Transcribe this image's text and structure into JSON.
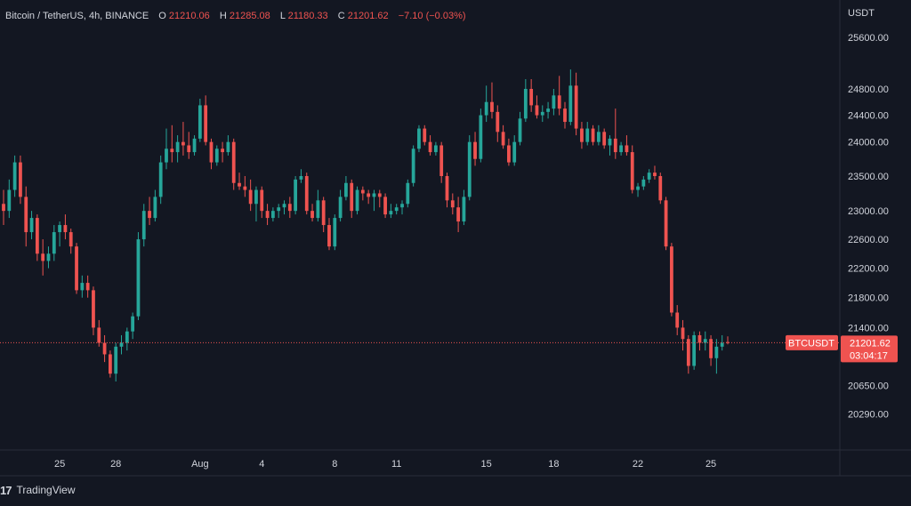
{
  "legend": {
    "symbol": "Bitcoin / TetherUS, 4h, BINANCE",
    "o_label": "O",
    "o_value": "21210.06",
    "h_label": "H",
    "h_value": "21285.08",
    "l_label": "L",
    "l_value": "21180.33",
    "c_label": "C",
    "c_value": "21201.62",
    "change": "−7.10 (−0.03%)"
  },
  "price_axis": {
    "currency": "USDT",
    "ticks": [
      "25600.00",
      "24800.00",
      "24400.00",
      "24000.00",
      "23500.00",
      "23000.00",
      "22600.00",
      "22200.00",
      "21800.00",
      "21400.00",
      "20650.00",
      "20290.00"
    ]
  },
  "price_marker": {
    "symbol_tag": "BTCUSDT",
    "price": "21201.62",
    "countdown": "03:04:17"
  },
  "time_axis": {
    "ticks": [
      "25",
      "28",
      "Aug",
      "4",
      "8",
      "11",
      "15",
      "18",
      "22",
      "25"
    ]
  },
  "branding": {
    "logo": "17",
    "name": "TradingView"
  },
  "colors": {
    "background": "#131722",
    "up": "#26a69a",
    "down": "#ef5350",
    "text": "#d1d4dc"
  },
  "chart_data": {
    "type": "candlestick",
    "title": "Bitcoin / TetherUS, 4h, BINANCE",
    "xlabel": "",
    "ylabel": "USDT",
    "y_scale": "log",
    "ylim": [
      20150,
      25800
    ],
    "last_price": 21201.62,
    "candles_ohlc": [
      [
        23100,
        23300,
        22800,
        23000
      ],
      [
        23000,
        23450,
        22900,
        23300
      ],
      [
        23300,
        23800,
        23200,
        23700
      ],
      [
        23700,
        23800,
        23100,
        23200
      ],
      [
        23200,
        23350,
        22500,
        22700
      ],
      [
        22700,
        23000,
        22600,
        22900
      ],
      [
        22900,
        22950,
        22300,
        22400
      ],
      [
        22400,
        22600,
        22100,
        22300
      ],
      [
        22300,
        22500,
        22200,
        22400
      ],
      [
        22400,
        22800,
        22300,
        22700
      ],
      [
        22700,
        22850,
        22500,
        22800
      ],
      [
        22800,
        22950,
        22600,
        22700
      ],
      [
        22700,
        22750,
        22400,
        22500
      ],
      [
        22500,
        22550,
        21850,
        21900
      ],
      [
        21900,
        22100,
        21800,
        22000
      ],
      [
        22000,
        22100,
        21800,
        21900
      ],
      [
        21900,
        21950,
        21300,
        21400
      ],
      [
        21400,
        21500,
        21150,
        21200
      ],
      [
        21200,
        21300,
        20950,
        21050
      ],
      [
        21050,
        21100,
        20750,
        20800
      ],
      [
        20800,
        21200,
        20700,
        21150
      ],
      [
        21150,
        21300,
        21050,
        21200
      ],
      [
        21200,
        21400,
        21100,
        21350
      ],
      [
        21350,
        21600,
        21250,
        21550
      ],
      [
        21550,
        22700,
        21500,
        22600
      ],
      [
        22600,
        23100,
        22500,
        23000
      ],
      [
        23000,
        23200,
        22800,
        22900
      ],
      [
        22900,
        23300,
        22850,
        23200
      ],
      [
        23200,
        23800,
        23100,
        23700
      ],
      [
        23700,
        24200,
        23600,
        23900
      ],
      [
        23900,
        24250,
        23700,
        23850
      ],
      [
        23850,
        24100,
        23700,
        24000
      ],
      [
        24000,
        24300,
        23800,
        23950
      ],
      [
        23950,
        24150,
        23750,
        23850
      ],
      [
        23850,
        24100,
        23800,
        24050
      ],
      [
        24050,
        24650,
        24000,
        24550
      ],
      [
        24550,
        24700,
        23950,
        24000
      ],
      [
        24000,
        24050,
        23600,
        23700
      ],
      [
        23700,
        23950,
        23650,
        23900
      ],
      [
        23900,
        24000,
        23700,
        23850
      ],
      [
        23850,
        24100,
        23800,
        24000
      ],
      [
        24000,
        24050,
        23300,
        23400
      ],
      [
        23400,
        23550,
        23300,
        23350
      ],
      [
        23350,
        23500,
        23200,
        23300
      ],
      [
        23300,
        23450,
        23000,
        23100
      ],
      [
        23100,
        23350,
        22850,
        23300
      ],
      [
        23300,
        23350,
        22900,
        23000
      ],
      [
        23000,
        23100,
        22800,
        22900
      ],
      [
        22900,
        23050,
        22850,
        23000
      ],
      [
        23000,
        23100,
        22900,
        23050
      ],
      [
        23050,
        23150,
        22950,
        23100
      ],
      [
        23100,
        23200,
        22900,
        23000
      ],
      [
        23000,
        23500,
        22950,
        23450
      ],
      [
        23450,
        23600,
        23400,
        23500
      ],
      [
        23500,
        23550,
        22950,
        23000
      ],
      [
        23000,
        23100,
        22850,
        22900
      ],
      [
        22900,
        23300,
        22850,
        23150
      ],
      [
        23150,
        23200,
        22700,
        22800
      ],
      [
        22800,
        22900,
        22450,
        22500
      ],
      [
        22500,
        22950,
        22450,
        22900
      ],
      [
        22900,
        23300,
        22850,
        23200
      ],
      [
        23200,
        23500,
        23150,
        23400
      ],
      [
        23400,
        23450,
        22900,
        23000
      ],
      [
        23000,
        23350,
        22950,
        23300
      ],
      [
        23300,
        23350,
        23150,
        23250
      ],
      [
        23250,
        23300,
        23100,
        23200
      ],
      [
        23200,
        23300,
        23000,
        23250
      ],
      [
        23250,
        23300,
        23050,
        23200
      ],
      [
        23200,
        23250,
        22900,
        22950
      ],
      [
        22950,
        23100,
        22900,
        23000
      ],
      [
        23000,
        23100,
        22950,
        23050
      ],
      [
        23050,
        23150,
        22950,
        23100
      ],
      [
        23100,
        23450,
        23050,
        23400
      ],
      [
        23400,
        23950,
        23350,
        23900
      ],
      [
        23900,
        24250,
        23850,
        24200
      ],
      [
        24200,
        24250,
        23950,
        24000
      ],
      [
        24000,
        24100,
        23800,
        23850
      ],
      [
        23850,
        24000,
        23800,
        23950
      ],
      [
        23950,
        24000,
        23400,
        23500
      ],
      [
        23500,
        23550,
        23050,
        23150
      ],
      [
        23150,
        23250,
        22950,
        23050
      ],
      [
        23050,
        23200,
        22700,
        22850
      ],
      [
        22850,
        23300,
        22800,
        23200
      ],
      [
        23200,
        24100,
        23150,
        24000
      ],
      [
        24000,
        24150,
        23650,
        23750
      ],
      [
        23750,
        24500,
        23700,
        24400
      ],
      [
        24400,
        24850,
        24300,
        24600
      ],
      [
        24600,
        24900,
        24350,
        24450
      ],
      [
        24450,
        24550,
        24000,
        24150
      ],
      [
        24150,
        24250,
        23900,
        23950
      ],
      [
        23950,
        24050,
        23650,
        23700
      ],
      [
        23700,
        24100,
        23650,
        24000
      ],
      [
        24000,
        24450,
        23950,
        24350
      ],
      [
        24350,
        24950,
        24300,
        24800
      ],
      [
        24800,
        24950,
        24450,
        24550
      ],
      [
        24550,
        24700,
        24350,
        24400
      ],
      [
        24400,
        24550,
        24300,
        24450
      ],
      [
        24450,
        24600,
        24350,
        24500
      ],
      [
        24500,
        24800,
        24400,
        24700
      ],
      [
        24700,
        25000,
        24400,
        24500
      ],
      [
        24500,
        24600,
        24200,
        24300
      ],
      [
        24300,
        25100,
        24250,
        24850
      ],
      [
        24850,
        25050,
        24100,
        24200
      ],
      [
        24200,
        24300,
        23900,
        24000
      ],
      [
        24000,
        24300,
        23950,
        24200
      ],
      [
        24200,
        24250,
        23950,
        24000
      ],
      [
        24000,
        24250,
        23950,
        24150
      ],
      [
        24150,
        24200,
        23900,
        23950
      ],
      [
        23950,
        24100,
        23800,
        24050
      ],
      [
        24050,
        24500,
        23750,
        23850
      ],
      [
        23850,
        24000,
        23800,
        23950
      ],
      [
        23950,
        24100,
        23800,
        23850
      ],
      [
        23850,
        23950,
        23250,
        23300
      ],
      [
        23300,
        23400,
        23200,
        23350
      ],
      [
        23350,
        23500,
        23300,
        23450
      ],
      [
        23450,
        23600,
        23400,
        23550
      ],
      [
        23550,
        23650,
        23450,
        23500
      ],
      [
        23500,
        23550,
        23100,
        23150
      ],
      [
        23150,
        23200,
        22450,
        22500
      ],
      [
        22500,
        22550,
        21550,
        21600
      ],
      [
        21600,
        21700,
        21300,
        21400
      ],
      [
        21400,
        21500,
        21100,
        21250
      ],
      [
        21250,
        21300,
        20800,
        20900
      ],
      [
        20900,
        21350,
        20850,
        21300
      ],
      [
        21300,
        21350,
        21100,
        21200
      ],
      [
        21200,
        21350,
        21100,
        21250
      ],
      [
        21250,
        21300,
        20900,
        21000
      ],
      [
        21000,
        21250,
        20800,
        21150
      ],
      [
        21150,
        21300,
        21100,
        21200
      ],
      [
        21210.06,
        21285.08,
        21180.33,
        21201.62
      ]
    ]
  }
}
